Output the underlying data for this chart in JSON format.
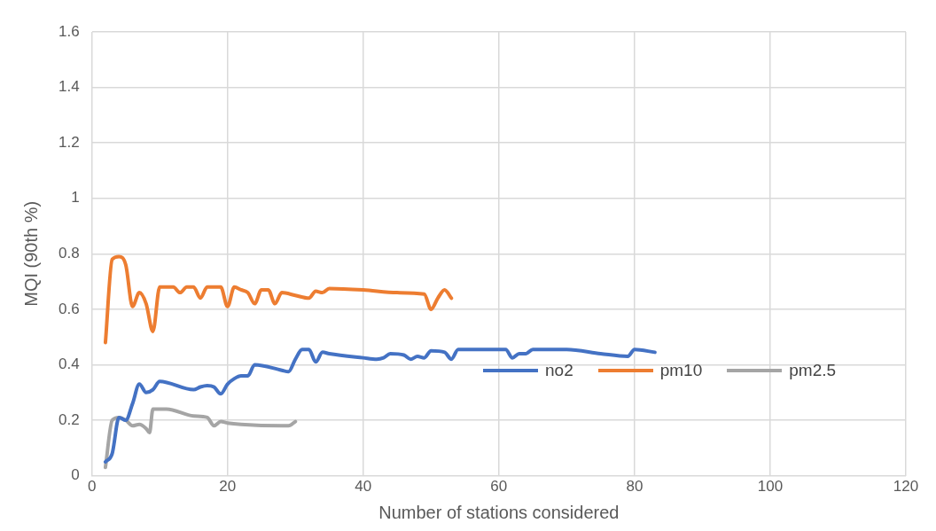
{
  "chart_data": {
    "type": "line",
    "xlabel": "Number of stations considered",
    "ylabel": "MQI (90th %)",
    "xlim": [
      0,
      120
    ],
    "xticks": [
      0,
      20,
      40,
      60,
      80,
      100,
      120
    ],
    "ylim": [
      0,
      1.6
    ],
    "yticks": [
      0,
      0.2,
      0.4,
      0.6,
      0.8,
      1,
      1.2,
      1.4,
      1.6
    ],
    "grid": true,
    "legend": "right",
    "marker": "none",
    "line_style": "solid",
    "series": [
      {
        "name": "no2",
        "color": "#4472c4",
        "x": [
          2,
          3,
          4,
          5,
          6,
          7,
          8,
          9,
          10,
          15,
          16,
          17,
          18,
          19,
          20,
          21,
          22,
          23,
          24,
          28,
          29,
          30,
          31,
          32,
          33,
          34,
          35,
          40,
          42,
          43,
          44,
          46,
          47,
          48,
          49,
          50,
          52,
          53,
          54,
          60,
          61,
          62,
          63,
          64,
          65,
          70,
          75,
          79,
          80,
          83
        ],
        "values": [
          0.05,
          0.08,
          0.21,
          0.2,
          0.26,
          0.33,
          0.3,
          0.31,
          0.34,
          0.31,
          0.32,
          0.325,
          0.32,
          0.295,
          0.33,
          0.35,
          0.36,
          0.36,
          0.4,
          0.38,
          0.375,
          0.42,
          0.455,
          0.455,
          0.41,
          0.445,
          0.44,
          0.425,
          0.42,
          0.425,
          0.44,
          0.435,
          0.42,
          0.43,
          0.425,
          0.45,
          0.445,
          0.42,
          0.455,
          0.455,
          0.455,
          0.425,
          0.44,
          0.44,
          0.455,
          0.455,
          0.44,
          0.43,
          0.455,
          0.445
        ]
      },
      {
        "name": "pm10",
        "color": "#ed7d31",
        "x": [
          2,
          3,
          4,
          5,
          6,
          7,
          8,
          9,
          10,
          11,
          12,
          13,
          14,
          15,
          16,
          17,
          18,
          19,
          20,
          21,
          22,
          23,
          24,
          25,
          26,
          27,
          28,
          30,
          32,
          33,
          34,
          35,
          40,
          45,
          49,
          50,
          51,
          52,
          53
        ],
        "values": [
          0.48,
          0.78,
          0.79,
          0.76,
          0.61,
          0.66,
          0.62,
          0.52,
          0.68,
          0.68,
          0.68,
          0.66,
          0.68,
          0.68,
          0.64,
          0.68,
          0.68,
          0.68,
          0.61,
          0.68,
          0.67,
          0.66,
          0.62,
          0.67,
          0.67,
          0.62,
          0.66,
          0.65,
          0.64,
          0.665,
          0.66,
          0.675,
          0.67,
          0.66,
          0.655,
          0.6,
          0.64,
          0.67,
          0.64
        ]
      },
      {
        "name": "pm2.5",
        "color": "#a5a5a5",
        "x": [
          2,
          3,
          4,
          5,
          6,
          7,
          8,
          8.5,
          9,
          10,
          11,
          15,
          17,
          18,
          19,
          20,
          22,
          28,
          29,
          30
        ],
        "values": [
          0.03,
          0.2,
          0.21,
          0.2,
          0.18,
          0.185,
          0.17,
          0.155,
          0.24,
          0.24,
          0.24,
          0.215,
          0.21,
          0.18,
          0.195,
          0.19,
          0.185,
          0.18,
          0.18,
          0.195
        ]
      }
    ]
  }
}
